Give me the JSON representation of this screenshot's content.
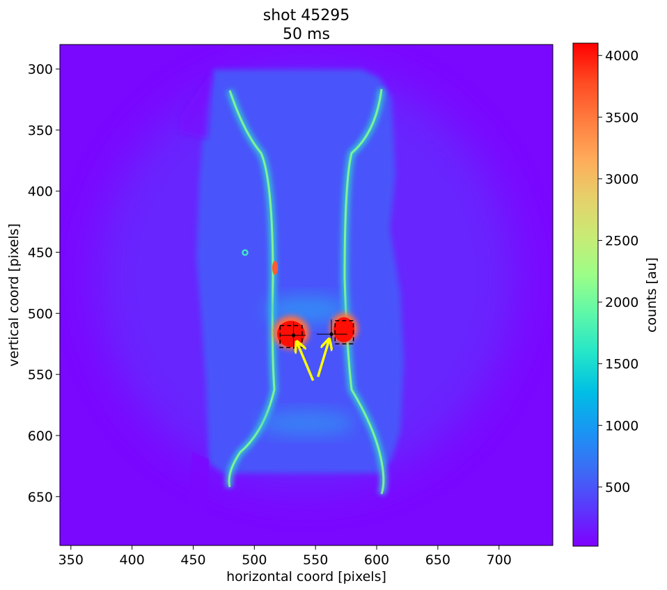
{
  "chart_data": {
    "type": "heatmap",
    "title_lines": [
      "shot 45295",
      "50 ms"
    ],
    "xlabel": "horizontal coord [pixels]",
    "ylabel": "vertical coord [pixels]",
    "xlim": [
      341,
      744
    ],
    "ylim": [
      690,
      280
    ],
    "xticks": [
      350,
      400,
      450,
      500,
      550,
      600,
      650,
      700
    ],
    "yticks": [
      300,
      350,
      400,
      450,
      500,
      550,
      600,
      650
    ],
    "colorbar": {
      "label": "counts [au]",
      "range": [
        20,
        4100
      ],
      "ticks": [
        500,
        1000,
        1500,
        2000,
        2500,
        3000,
        3500,
        4000
      ],
      "colormap": "rainbow",
      "colors": [
        "#7f00ff",
        "#5a39fc",
        "#3b6df5",
        "#1996f3",
        "#00bfe4",
        "#25e6c8",
        "#5df7a9",
        "#9bfe88",
        "#c8eb75",
        "#e6d06a",
        "#ffab5a",
        "#ff7d3f",
        "#ff4a22",
        "#ff0000"
      ]
    },
    "markers": [
      {
        "name": "left-spot",
        "center": [
          532,
          518
        ],
        "box_x": [
          521,
          539
        ],
        "box_y": [
          510,
          528
        ],
        "crosshair_x": [
          521,
          542
        ],
        "crosshair_y": [
          507,
          529
        ]
      },
      {
        "name": "right-spot",
        "center": [
          563,
          517
        ],
        "box_x": [
          566,
          581
        ],
        "box_y": [
          506,
          525
        ],
        "crosshair_x": [
          551,
          576
        ],
        "crosshair_y": [
          505,
          525
        ]
      }
    ],
    "arrows": [
      {
        "from": [
          548,
          555
        ],
        "to": [
          535,
          524
        ],
        "color": "#ffff00"
      },
      {
        "from": [
          552,
          552
        ],
        "to": [
          561,
          522
        ],
        "color": "#ffff00"
      }
    ]
  }
}
